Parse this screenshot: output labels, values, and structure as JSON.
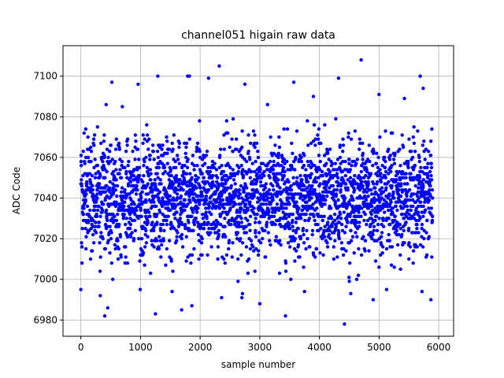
{
  "chart_data": {
    "type": "scatter",
    "title": "channel051 higain raw data",
    "xlabel": "sample number",
    "ylabel": "ADC Code",
    "xlim": [
      -300,
      6250
    ],
    "ylim": [
      6972,
      7115
    ],
    "xticks": [
      0,
      1000,
      2000,
      3000,
      4000,
      5000,
      6000
    ],
    "yticks": [
      6980,
      7000,
      7020,
      7040,
      7060,
      7080,
      7100
    ],
    "grid": true,
    "marker_color": "#0000ff",
    "series": [
      {
        "n_samples": 5900,
        "center": 7040,
        "spread": 14,
        "outliers": [
          {
            "x": 1250,
            "y": 6983
          },
          {
            "x": 3430,
            "y": 6982
          },
          {
            "x": 4420,
            "y": 6978
          },
          {
            "x": 400,
            "y": 6982
          },
          {
            "x": 450,
            "y": 6986
          },
          {
            "x": 2320,
            "y": 7105
          },
          {
            "x": 4700,
            "y": 7108
          },
          {
            "x": 1790,
            "y": 7100
          },
          {
            "x": 1820,
            "y": 7100
          },
          {
            "x": 1290,
            "y": 7100
          },
          {
            "x": 5690,
            "y": 7100
          },
          {
            "x": 2140,
            "y": 7099
          },
          {
            "x": 4320,
            "y": 7099
          },
          {
            "x": 520,
            "y": 7097
          },
          {
            "x": 3570,
            "y": 7097
          },
          {
            "x": 2750,
            "y": 7096
          },
          {
            "x": 960,
            "y": 7096
          },
          {
            "x": 3000,
            "y": 6988
          },
          {
            "x": 1690,
            "y": 6985
          },
          {
            "x": 1860,
            "y": 6987
          },
          {
            "x": 5870,
            "y": 6990
          },
          {
            "x": 0,
            "y": 6995
          },
          {
            "x": 5720,
            "y": 6994
          },
          {
            "x": 4900,
            "y": 6990
          },
          {
            "x": 2700,
            "y": 6991
          },
          {
            "x": 1530,
            "y": 6994
          },
          {
            "x": 5000,
            "y": 7091
          },
          {
            "x": 5740,
            "y": 7094
          },
          {
            "x": 3900,
            "y": 7090
          }
        ]
      }
    ]
  }
}
